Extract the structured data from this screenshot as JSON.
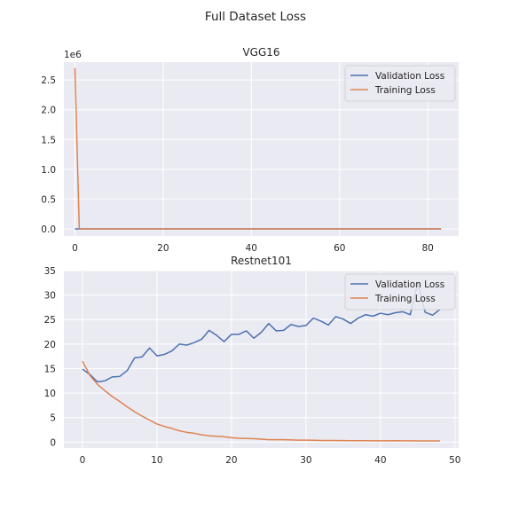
{
  "figure": {
    "suptitle": "Full Dataset Loss"
  },
  "colors": {
    "validation": "#4c72b0",
    "training": "#dd8452",
    "axes_bg": "#eaeaf2",
    "grid": "#ffffff"
  },
  "chart_data": [
    {
      "type": "line",
      "title": "VGG16",
      "xlabel": "",
      "ylabel": "",
      "y_offset_label": "1e6",
      "xlim": [
        -2.5,
        87
      ],
      "ylim": [
        -0.12,
        2.8
      ],
      "xticks": [
        0,
        20,
        40,
        60,
        80
      ],
      "yticks": [
        0.0,
        0.5,
        1.0,
        1.5,
        2.0,
        2.5
      ],
      "ytick_labels": [
        "0.0",
        "0.5",
        "1.0",
        "1.5",
        "2.0",
        "2.5"
      ],
      "grid": true,
      "legend": "upper right",
      "series": [
        {
          "name": "Validation Loss",
          "x": [
            0,
            83
          ],
          "values": [
            0.0,
            0.0
          ]
        },
        {
          "name": "Training Loss",
          "x": [
            0,
            1,
            83
          ],
          "values": [
            2.7,
            0.0,
            0.0
          ]
        }
      ]
    },
    {
      "type": "line",
      "title": "Restnet101",
      "xlabel": "",
      "ylabel": "",
      "xlim": [
        -2.5,
        50.5
      ],
      "ylim": [
        -1.2,
        35
      ],
      "xticks": [
        0,
        10,
        20,
        30,
        40,
        50
      ],
      "yticks": [
        0,
        5,
        10,
        15,
        20,
        25,
        30,
        35
      ],
      "ytick_labels": [
        "0",
        "5",
        "10",
        "15",
        "20",
        "25",
        "30",
        "35"
      ],
      "grid": true,
      "legend": "upper right",
      "series": [
        {
          "name": "Validation Loss",
          "x": [
            0,
            1,
            2,
            3,
            4,
            5,
            6,
            7,
            8,
            9,
            10,
            11,
            12,
            13,
            14,
            15,
            16,
            17,
            18,
            19,
            20,
            21,
            22,
            23,
            24,
            25,
            26,
            27,
            28,
            29,
            30,
            31,
            32,
            33,
            34,
            35,
            36,
            37,
            38,
            39,
            40,
            41,
            42,
            43,
            44,
            45,
            46,
            47,
            48
          ],
          "values": [
            14.9,
            13.8,
            12.3,
            12.5,
            13.3,
            13.4,
            14.6,
            17.2,
            17.4,
            19.2,
            17.6,
            17.9,
            18.6,
            20.0,
            19.8,
            20.3,
            21.0,
            22.8,
            21.8,
            20.5,
            22.0,
            22.0,
            22.7,
            21.2,
            22.4,
            24.2,
            22.7,
            22.8,
            24.0,
            23.6,
            23.8,
            25.3,
            24.7,
            23.9,
            25.6,
            25.1,
            24.2,
            25.3,
            26.0,
            25.7,
            26.3,
            26.0,
            26.4,
            26.6,
            26.0,
            32.5,
            26.5,
            25.9,
            27.1
          ]
        },
        {
          "name": "Training Loss",
          "x": [
            0,
            1,
            2,
            3,
            4,
            5,
            6,
            7,
            8,
            9,
            10,
            11,
            12,
            13,
            14,
            15,
            16,
            17,
            18,
            19,
            20,
            21,
            22,
            23,
            24,
            25,
            26,
            27,
            28,
            29,
            30,
            31,
            32,
            33,
            34,
            35,
            36,
            37,
            38,
            39,
            40,
            41,
            42,
            43,
            44,
            45,
            46,
            47,
            48
          ],
          "values": [
            16.5,
            13.6,
            11.8,
            10.5,
            9.3,
            8.3,
            7.2,
            6.2,
            5.3,
            4.5,
            3.7,
            3.2,
            2.8,
            2.3,
            2.0,
            1.8,
            1.5,
            1.3,
            1.2,
            1.1,
            0.9,
            0.8,
            0.75,
            0.7,
            0.6,
            0.5,
            0.5,
            0.5,
            0.45,
            0.4,
            0.4,
            0.38,
            0.35,
            0.35,
            0.33,
            0.32,
            0.3,
            0.3,
            0.3,
            0.28,
            0.28,
            0.28,
            0.3,
            0.28,
            0.28,
            0.25,
            0.25,
            0.25,
            0.25
          ]
        }
      ]
    }
  ]
}
